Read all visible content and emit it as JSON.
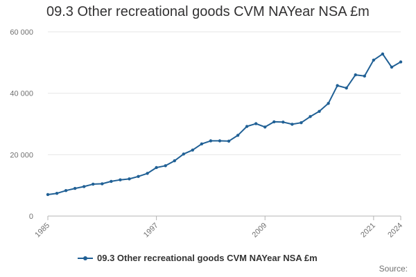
{
  "chart_data": {
    "type": "line",
    "title": "09.3 Other recreational goods CVM NAYear NSA £m",
    "xlabel": "",
    "ylabel": "",
    "ylim": [
      0,
      60000
    ],
    "yticks": [
      0,
      20000,
      40000,
      60000
    ],
    "ytick_labels": [
      "0",
      "20 000",
      "40 000",
      "60 000"
    ],
    "xtick_years": [
      1985,
      1997,
      2009,
      2021,
      2024
    ],
    "xtick_labels": [
      "1985",
      "1997",
      "2009",
      "2021",
      "2024"
    ],
    "grid": true,
    "legend_position": "bottom",
    "series": [
      {
        "name": "09.3 Other recreational goods CVM NAYear NSA £m",
        "color": "#206095",
        "x": [
          1985,
          1986,
          1987,
          1988,
          1989,
          1990,
          1991,
          1992,
          1993,
          1994,
          1995,
          1996,
          1997,
          1998,
          1999,
          2000,
          2001,
          2002,
          2003,
          2004,
          2005,
          2006,
          2007,
          2008,
          2009,
          2010,
          2011,
          2012,
          2013,
          2014,
          2015,
          2016,
          2017,
          2018,
          2019,
          2020,
          2021,
          2022,
          2023,
          2024
        ],
        "values": [
          7000,
          7400,
          8300,
          9000,
          9600,
          10400,
          10500,
          11300,
          11800,
          12100,
          12900,
          13900,
          15800,
          16400,
          18000,
          20200,
          21500,
          23500,
          24500,
          24500,
          24400,
          26300,
          29200,
          30100,
          29000,
          30700,
          30600,
          29900,
          30400,
          32400,
          34100,
          36700,
          42500,
          41700,
          46000,
          45600,
          50800,
          52800,
          48500,
          50200
        ]
      }
    ]
  },
  "source_label": "Source:"
}
